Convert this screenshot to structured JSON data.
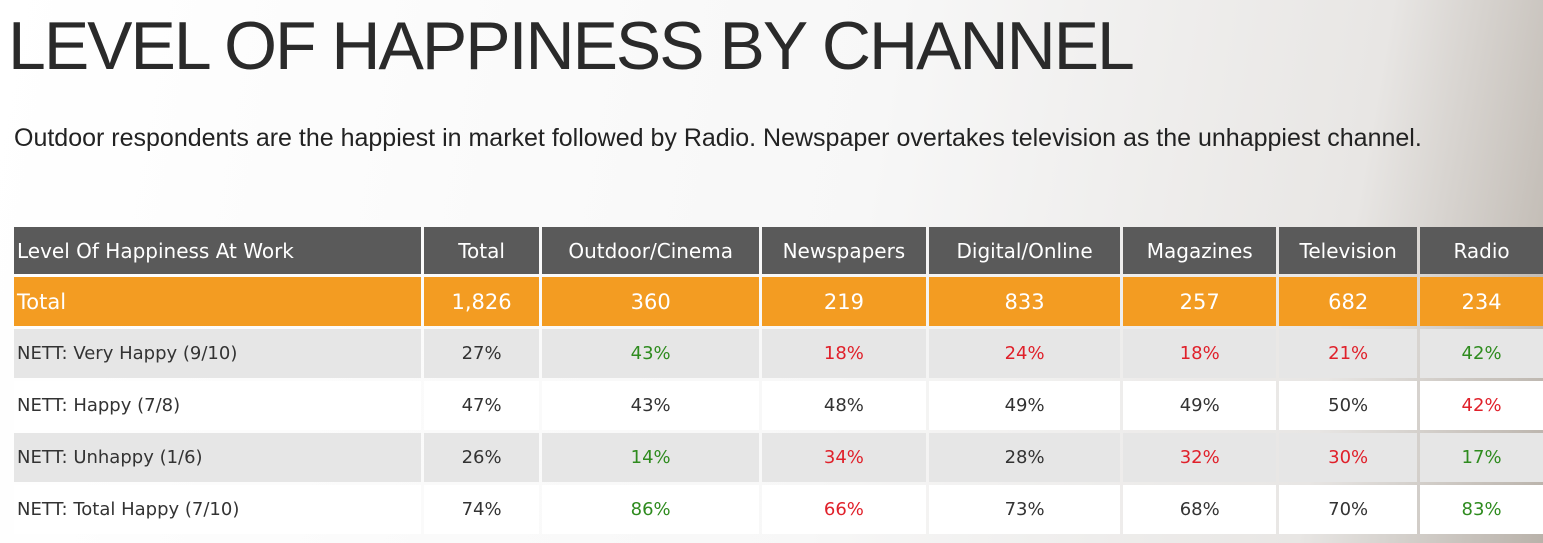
{
  "title": "LEVEL OF HAPPINESS BY CHANNEL",
  "subtitle": "Outdoor respondents are the happiest in market followed by Radio. Newspaper overtakes television as the unhappiest channel.",
  "table": {
    "header": [
      "Level Of Happiness At Work",
      "Total",
      "Outdoor/Cinema",
      "Newspapers",
      "Digital/Online",
      "Magazines",
      "Television",
      "Radio"
    ],
    "rows": [
      {
        "cells": [
          "Total",
          "1,826",
          "360",
          "219",
          "833",
          "257",
          "682",
          "234"
        ],
        "colors": [
          "#ffffff",
          "#ffffff",
          "#ffffff",
          "#ffffff",
          "#ffffff",
          "#ffffff",
          "#ffffff",
          "#ffffff"
        ],
        "background": "#f39c22"
      },
      {
        "cells": [
          "NETT: Very Happy (9/10)",
          "27%",
          "43%",
          "18%",
          "24%",
          "18%",
          "21%",
          "42%"
        ],
        "colors": [
          "#333333",
          "#333333",
          "#2e8b1e",
          "#e0202a",
          "#e0202a",
          "#e0202a",
          "#e0202a",
          "#2e8b1e"
        ],
        "background": "#e6e6e6"
      },
      {
        "cells": [
          "NETT: Happy (7/8)",
          "47%",
          "43%",
          "48%",
          "49%",
          "49%",
          "50%",
          "42%"
        ],
        "colors": [
          "#333333",
          "#333333",
          "#333333",
          "#333333",
          "#333333",
          "#333333",
          "#333333",
          "#e0202a"
        ],
        "background": "#ffffff"
      },
      {
        "cells": [
          "NETT: Unhappy (1/6)",
          "26%",
          "14%",
          "34%",
          "28%",
          "32%",
          "30%",
          "17%"
        ],
        "colors": [
          "#333333",
          "#333333",
          "#2e8b1e",
          "#e0202a",
          "#333333",
          "#e0202a",
          "#e0202a",
          "#2e8b1e"
        ],
        "background": "#e6e6e6"
      },
      {
        "cells": [
          "NETT: Total Happy (7/10)",
          "74%",
          "86%",
          "66%",
          "73%",
          "68%",
          "70%",
          "83%"
        ],
        "colors": [
          "#333333",
          "#333333",
          "#2e8b1e",
          "#e0202a",
          "#333333",
          "#333333",
          "#333333",
          "#2e8b1e"
        ],
        "background": "#ffffff"
      }
    ]
  }
}
